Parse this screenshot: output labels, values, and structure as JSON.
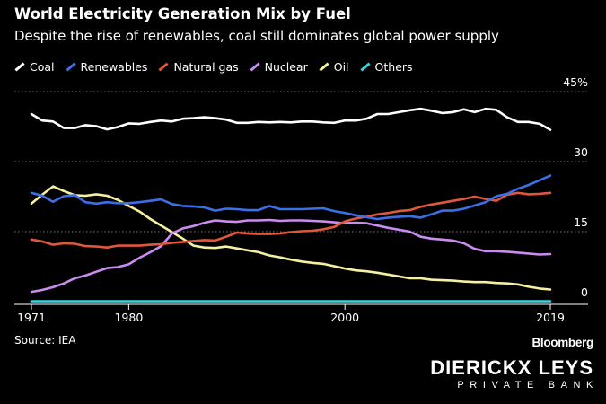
{
  "chart_data": {
    "type": "line",
    "title": "World Electricity Generation Mix by Fuel",
    "subtitle": "Despite the rise of renewables, coal still dominates global power supply",
    "x": [
      1971,
      1972,
      1973,
      1974,
      1975,
      1976,
      1977,
      1978,
      1979,
      1980,
      1981,
      1982,
      1983,
      1984,
      1985,
      1986,
      1987,
      1988,
      1989,
      1990,
      1991,
      1992,
      1993,
      1994,
      1995,
      1996,
      1997,
      1998,
      1999,
      2000,
      2001,
      2002,
      2003,
      2004,
      2005,
      2006,
      2007,
      2008,
      2009,
      2010,
      2011,
      2012,
      2013,
      2014,
      2015,
      2016,
      2017,
      2018,
      2019
    ],
    "x_ticks": [
      "1971",
      "1980",
      "2000",
      "2019"
    ],
    "y_ticks": [
      "0",
      "15",
      "30",
      "45%"
    ],
    "ylim": [
      0,
      45
    ],
    "grid": "horizontal dotted",
    "legend": "top-left",
    "series": [
      {
        "name": "Coal",
        "color": "#ffffff",
        "values": [
          40.2,
          38.8,
          38.6,
          37.2,
          37.2,
          37.8,
          37.6,
          36.9,
          37.4,
          38.2,
          38.1,
          38.5,
          38.8,
          38.6,
          39.2,
          39.3,
          39.5,
          39.3,
          39.0,
          38.3,
          38.3,
          38.5,
          38.4,
          38.5,
          38.4,
          38.6,
          38.6,
          38.4,
          38.3,
          38.8,
          38.8,
          39.2,
          40.2,
          40.2,
          40.6,
          41.0,
          41.3,
          40.9,
          40.4,
          40.6,
          41.2,
          40.6,
          41.3,
          41.1,
          39.5,
          38.5,
          38.5,
          38.1,
          36.8
        ]
      },
      {
        "name": "Renewables",
        "color": "#3b6fe8",
        "values": [
          23.3,
          22.7,
          21.4,
          22.6,
          22.8,
          21.3,
          21.0,
          21.3,
          21.1,
          21.1,
          21.3,
          21.6,
          21.9,
          20.9,
          20.5,
          20.4,
          20.2,
          19.5,
          19.9,
          19.8,
          19.6,
          19.6,
          20.5,
          19.8,
          19.8,
          19.8,
          19.9,
          20.0,
          19.4,
          19.0,
          18.5,
          18.1,
          17.7,
          18.0,
          18.2,
          18.3,
          18.0,
          18.7,
          19.5,
          19.5,
          19.9,
          20.6,
          21.3,
          22.6,
          23.1,
          24.2,
          25.0,
          26.0,
          27.0
        ]
      },
      {
        "name": "Natural gas",
        "color": "#e0573a",
        "values": [
          13.3,
          12.9,
          12.2,
          12.5,
          12.4,
          11.9,
          11.8,
          11.6,
          12.0,
          12.0,
          12.0,
          12.2,
          12.3,
          12.6,
          12.8,
          13.0,
          13.2,
          13.1,
          13.9,
          14.8,
          14.6,
          14.5,
          14.5,
          14.6,
          14.9,
          15.1,
          15.2,
          15.5,
          16.0,
          17.2,
          17.8,
          18.2,
          18.7,
          19.0,
          19.4,
          19.6,
          20.3,
          20.8,
          21.2,
          21.6,
          22.0,
          22.5,
          22.0,
          21.6,
          22.9,
          23.3,
          23.0,
          23.1,
          23.3
        ]
      },
      {
        "name": "Nuclear",
        "color": "#c98cf0",
        "values": [
          2.1,
          2.5,
          3.1,
          3.9,
          5.0,
          5.6,
          6.4,
          7.2,
          7.4,
          8.0,
          9.4,
          10.6,
          11.9,
          14.6,
          15.7,
          16.2,
          16.9,
          17.4,
          17.2,
          17.1,
          17.4,
          17.4,
          17.5,
          17.3,
          17.4,
          17.4,
          17.3,
          17.2,
          17.0,
          16.8,
          16.9,
          16.8,
          16.3,
          15.8,
          15.4,
          15.0,
          13.9,
          13.5,
          13.3,
          13.1,
          12.5,
          11.3,
          10.8,
          10.8,
          10.7,
          10.5,
          10.3,
          10.1,
          10.2
        ]
      },
      {
        "name": "Oil",
        "color": "#f5f0a0",
        "values": [
          21.0,
          22.9,
          24.7,
          23.7,
          22.8,
          22.7,
          23.0,
          22.7,
          21.8,
          20.5,
          19.3,
          17.7,
          16.3,
          14.9,
          13.5,
          12.0,
          11.6,
          11.5,
          11.8,
          11.4,
          11.0,
          10.6,
          9.9,
          9.5,
          9.0,
          8.6,
          8.3,
          8.1,
          7.6,
          7.1,
          6.7,
          6.5,
          6.2,
          5.8,
          5.4,
          5.0,
          5.0,
          4.7,
          4.6,
          4.5,
          4.3,
          4.2,
          4.2,
          4.0,
          3.9,
          3.7,
          3.2,
          2.8,
          2.6
        ]
      },
      {
        "name": "Others",
        "color": "#34d6e0",
        "values": [
          0.1,
          0.1,
          0.1,
          0.1,
          0.1,
          0.1,
          0.1,
          0.1,
          0.1,
          0.1,
          0.1,
          0.1,
          0.1,
          0.1,
          0.1,
          0.1,
          0.1,
          0.1,
          0.1,
          0.1,
          0.1,
          0.1,
          0.1,
          0.1,
          0.1,
          0.1,
          0.1,
          0.1,
          0.1,
          0.1,
          0.1,
          0.1,
          0.1,
          0.1,
          0.1,
          0.1,
          0.1,
          0.1,
          0.1,
          0.1,
          0.1,
          0.1,
          0.1,
          0.1,
          0.1,
          0.1,
          0.1,
          0.1,
          0.1
        ]
      }
    ]
  },
  "footer": {
    "source": "Source: IEA",
    "bloomberg": "Bloomberg",
    "brand_name": "DIERICKX LEYS",
    "brand_sub": "PRIVATE BANK"
  }
}
